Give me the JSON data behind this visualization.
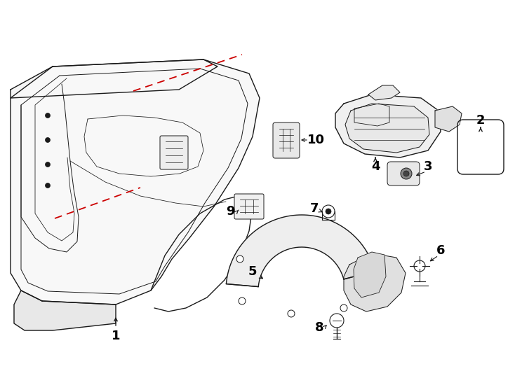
{
  "background_color": "#ffffff",
  "line_color": "#1a1a1a",
  "red_dash_color": "#cc0000",
  "fig_width": 7.34,
  "fig_height": 5.4,
  "dpi": 100
}
